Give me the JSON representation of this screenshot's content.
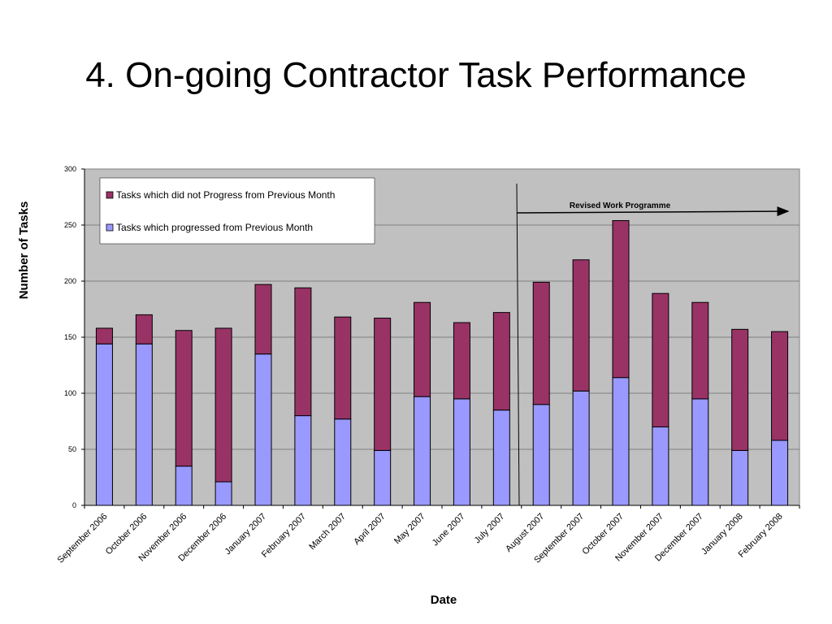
{
  "slide": {
    "title": "4. On-going Contractor Task Performance"
  },
  "chart_data": {
    "type": "bar",
    "stacked": true,
    "categories": [
      "September 2006",
      "October 2006",
      "November 2006",
      "December 2006",
      "January 2007",
      "February 2007",
      "March 2007",
      "April 2007",
      "May 2007",
      "June 2007",
      "July 2007",
      "August 2007",
      "September 2007",
      "October 2007",
      "November 2007",
      "December 2007",
      "January 2008",
      "February 2008"
    ],
    "series": [
      {
        "name": "Tasks which progressed from Previous Month",
        "color": "#9999ff",
        "values": [
          144,
          144,
          35,
          21,
          135,
          80,
          77,
          49,
          97,
          95,
          85,
          90,
          102,
          114,
          70,
          95,
          49,
          58
        ]
      },
      {
        "name": "Tasks which did not Progress from Previous Month",
        "color": "#993366",
        "values": [
          14,
          26,
          121,
          137,
          62,
          114,
          91,
          118,
          84,
          68,
          87,
          109,
          117,
          140,
          119,
          86,
          108,
          97
        ]
      }
    ],
    "xlabel": "Date",
    "ylabel": "Number of Tasks",
    "ylim": [
      0,
      300
    ],
    "yticks": [
      0,
      50,
      100,
      150,
      200,
      250,
      300
    ],
    "grid": true,
    "plot_background": "#c0c0c0",
    "legend": {
      "placement": "top-left",
      "entries": [
        "Tasks which did not Progress from Previous Month",
        "Tasks which progressed from Previous Month"
      ]
    },
    "annotations": [
      {
        "text": "Revised Work Programme",
        "type": "arrow",
        "between_categories": [
          "July 2007",
          "August 2007"
        ]
      }
    ]
  }
}
